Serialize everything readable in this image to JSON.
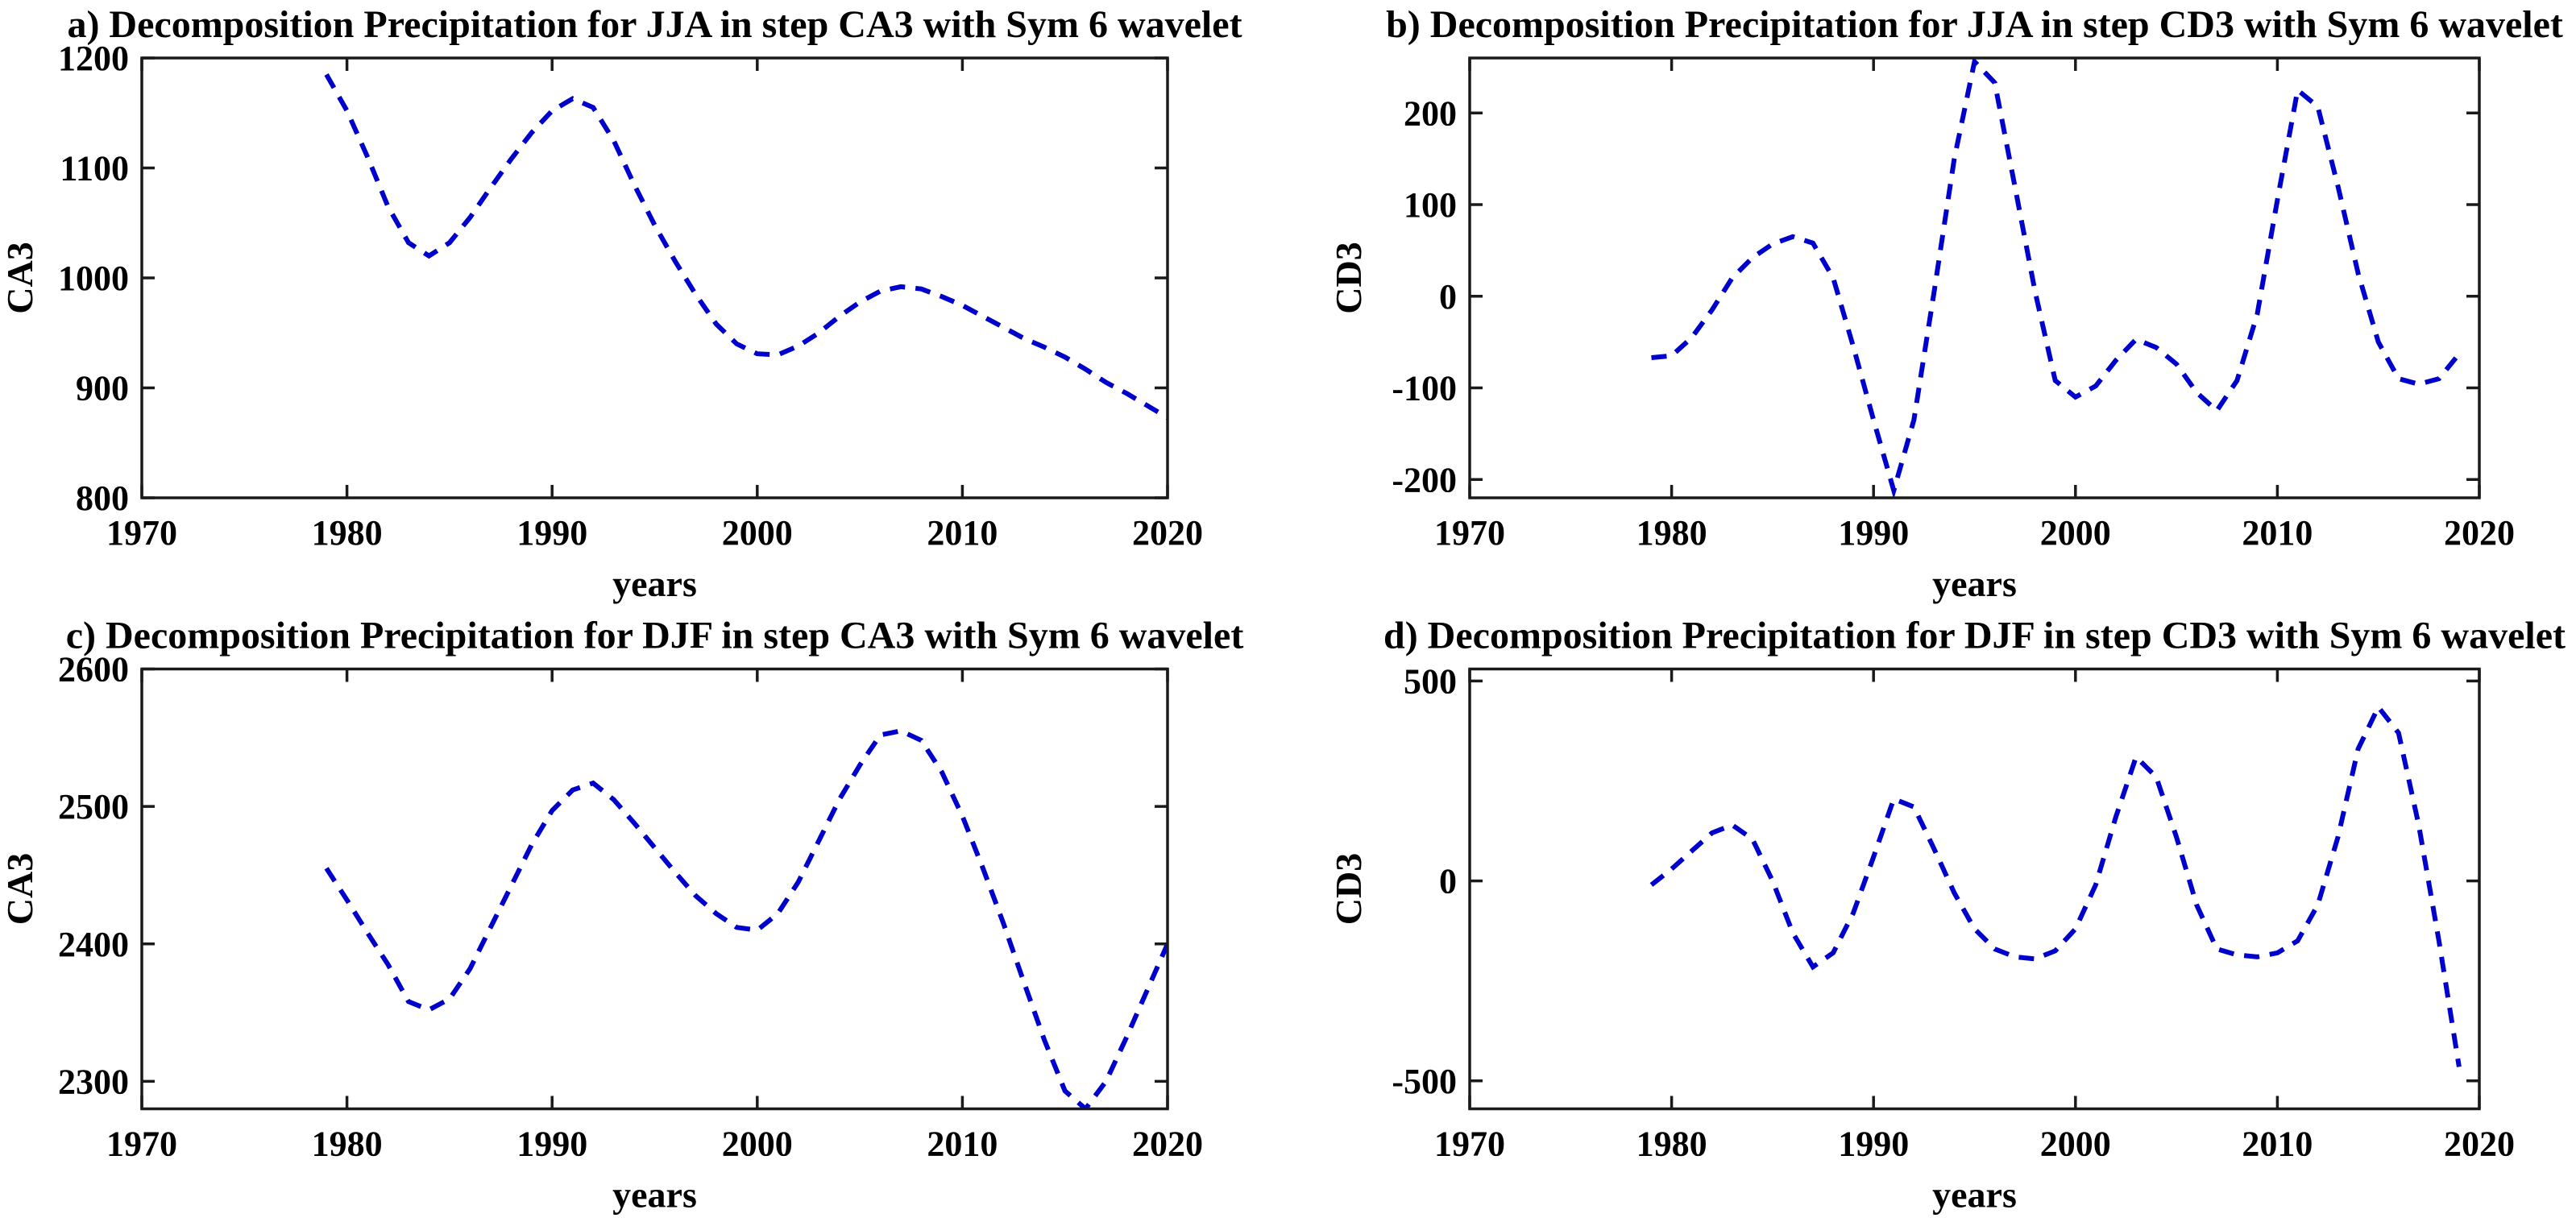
{
  "figure": {
    "background": "#ffffff",
    "line_color": "#0000CC",
    "axis_color": "#1a1a1a",
    "text_color": "#000000"
  },
  "chart_data": [
    {
      "id": "a",
      "type": "line",
      "title": "a) Decomposition Precipitation for JJA in step CA3 with Sym 6 wavelet",
      "xlabel": "years",
      "ylabel": "CA3",
      "legend": "none",
      "grid": false,
      "line_style": "dashed",
      "xlim": [
        1970,
        2020
      ],
      "ylim": [
        800,
        1200
      ],
      "xticks": [
        1970,
        1980,
        1990,
        2000,
        2010,
        2020
      ],
      "yticks": [
        800,
        900,
        1000,
        1100,
        1200
      ],
      "x": [
        1979,
        1980,
        1981,
        1982,
        1983,
        1984,
        1985,
        1986,
        1987,
        1988,
        1989,
        1990,
        1991,
        1992,
        1993,
        1994,
        1995,
        1996,
        1997,
        1998,
        1999,
        2000,
        2001,
        2002,
        2003,
        2004,
        2005,
        2006,
        2007,
        2008,
        2009,
        2010,
        2011,
        2012,
        2013,
        2014,
        2015,
        2016,
        2017,
        2018,
        2019,
        2020
      ],
      "y": [
        1185,
        1152,
        1110,
        1065,
        1032,
        1020,
        1032,
        1055,
        1082,
        1108,
        1132,
        1152,
        1163,
        1155,
        1125,
        1085,
        1048,
        1015,
        985,
        958,
        940,
        931,
        930,
        938,
        950,
        965,
        978,
        988,
        992,
        990,
        983,
        975,
        965,
        955,
        945,
        937,
        928,
        917,
        905,
        895,
        884,
        873
      ]
    },
    {
      "id": "b",
      "type": "line",
      "title": "b) Decomposition Precipitation for JJA in step CD3 with Sym 6 wavelet",
      "xlabel": "years",
      "ylabel": "CD3",
      "legend": "none",
      "grid": false,
      "line_style": "dashed",
      "xlim": [
        1970,
        2020
      ],
      "ylim": [
        -220,
        260
      ],
      "xticks": [
        1970,
        1980,
        1990,
        2000,
        2010,
        2020
      ],
      "yticks": [
        -200,
        -100,
        0,
        100,
        200
      ],
      "x": [
        1979,
        1980,
        1981,
        1982,
        1983,
        1984,
        1985,
        1986,
        1987,
        1988,
        1989,
        1990,
        1991,
        1992,
        1993,
        1994,
        1995,
        1996,
        1997,
        1998,
        1999,
        2000,
        2001,
        2002,
        2003,
        2004,
        2005,
        2006,
        2007,
        2008,
        2009,
        2010,
        2011,
        2012,
        2013,
        2014,
        2015,
        2016,
        2017,
        2018,
        2019
      ],
      "y": [
        -67,
        -65,
        -45,
        -15,
        20,
        42,
        57,
        65,
        58,
        20,
        -55,
        -135,
        -212,
        -135,
        5,
        150,
        256,
        233,
        120,
        5,
        -92,
        -110,
        -98,
        -70,
        -47,
        -56,
        -74,
        -105,
        -125,
        -92,
        -20,
        105,
        225,
        207,
        120,
        25,
        -50,
        -90,
        -96,
        -90,
        -63
      ]
    },
    {
      "id": "c",
      "type": "line",
      "title": "c) Decomposition Precipitation for DJF in step CA3 with Sym 6 wavelet",
      "xlabel": "years",
      "ylabel": "CA3",
      "legend": "none",
      "grid": false,
      "line_style": "dashed",
      "xlim": [
        1970,
        2020
      ],
      "ylim": [
        2280,
        2600
      ],
      "xticks": [
        1970,
        1980,
        1990,
        2000,
        2010,
        2020
      ],
      "yticks": [
        2300,
        2400,
        2500,
        2600
      ],
      "x": [
        1979,
        1980,
        1981,
        1982,
        1983,
        1984,
        1985,
        1986,
        1987,
        1988,
        1989,
        1990,
        1991,
        1992,
        1993,
        1994,
        1995,
        1996,
        1997,
        1998,
        1999,
        2000,
        2001,
        2002,
        2003,
        2004,
        2005,
        2006,
        2007,
        2008,
        2009,
        2010,
        2011,
        2012,
        2013,
        2014,
        2015,
        2016,
        2017,
        2018,
        2019,
        2020
      ],
      "y": [
        2455,
        2432,
        2408,
        2385,
        2358,
        2352,
        2360,
        2382,
        2412,
        2442,
        2472,
        2497,
        2512,
        2517,
        2505,
        2488,
        2470,
        2452,
        2435,
        2422,
        2412,
        2410,
        2422,
        2445,
        2475,
        2505,
        2530,
        2552,
        2555,
        2548,
        2525,
        2493,
        2455,
        2415,
        2372,
        2330,
        2293,
        2280,
        2300,
        2332,
        2366,
        2400
      ]
    },
    {
      "id": "d",
      "type": "line",
      "title": "d) Decomposition Precipitation for DJF in step CD3 with Sym 6 wavelet",
      "xlabel": "years",
      "ylabel": "CD3",
      "legend": "none",
      "grid": false,
      "line_style": "dashed",
      "xlim": [
        1970,
        2020
      ],
      "ylim": [
        -570,
        530
      ],
      "xticks": [
        1970,
        1980,
        1990,
        2000,
        2010,
        2020
      ],
      "yticks": [
        -500,
        0,
        500
      ],
      "x": [
        1979,
        1980,
        1981,
        1982,
        1983,
        1984,
        1985,
        1986,
        1987,
        1988,
        1989,
        1990,
        1991,
        1992,
        1993,
        1994,
        1995,
        1996,
        1997,
        1998,
        1999,
        2000,
        2001,
        2002,
        2003,
        2004,
        2005,
        2006,
        2007,
        2008,
        2009,
        2010,
        2011,
        2012,
        2013,
        2014,
        2015,
        2016,
        2017,
        2018,
        2019
      ],
      "y": [
        -10,
        30,
        75,
        120,
        140,
        105,
        0,
        -130,
        -215,
        -180,
        -80,
        60,
        205,
        185,
        80,
        -30,
        -120,
        -170,
        -190,
        -195,
        -175,
        -120,
        -10,
        160,
        310,
        260,
        110,
        -60,
        -170,
        -185,
        -190,
        -180,
        -150,
        -60,
        110,
        330,
        435,
        370,
        140,
        -150,
        -465
      ]
    }
  ]
}
